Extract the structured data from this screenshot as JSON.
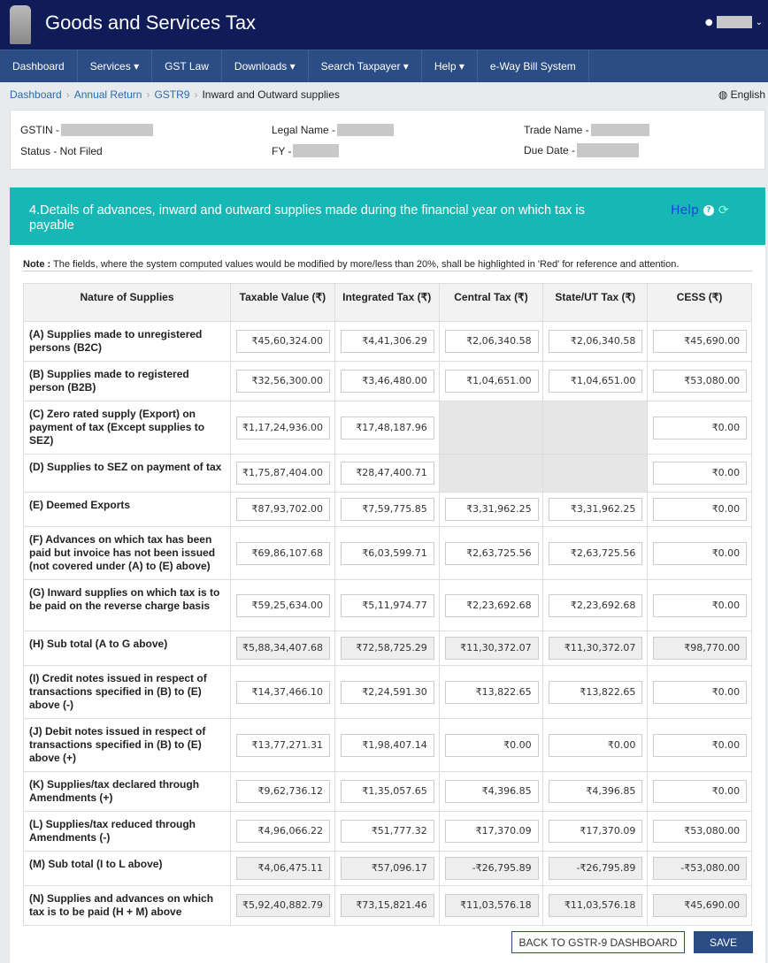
{
  "header": {
    "title": "Goods and Services Tax"
  },
  "nav": [
    "Dashboard",
    "Services ▾",
    "GST Law",
    "Downloads ▾",
    "Search Taxpayer ▾",
    "Help ▾",
    "e-Way Bill System"
  ],
  "breadcrumb": [
    "Dashboard",
    "Annual Return",
    "GSTR9",
    "Inward and Outward supplies"
  ],
  "language": "English",
  "info": {
    "gstin": "GSTIN -",
    "legal_name": "Legal Name -",
    "trade_name": "Trade Name -",
    "status": "Status - Not Filed",
    "fy": "FY -",
    "due_date": "Due Date -"
  },
  "banner": {
    "title": "4.Details of advances, inward and outward supplies made during the financial year on which tax is payable",
    "help": "Help"
  },
  "note": {
    "label": "Note :",
    "text": " The fields, where the system computed values would be modified by more/less than 20%, shall be highlighted in 'Red' for reference and attention."
  },
  "table": {
    "headers": [
      "Nature of Supplies",
      "Taxable Value (₹)",
      "Integrated Tax (₹)",
      "Central Tax (₹)",
      "State/UT Tax (₹)",
      "CESS (₹)"
    ],
    "rows": [
      {
        "label": "(A) Supplies made to unregistered persons (B2C)",
        "values": [
          "₹45,60,324.00",
          "₹4,41,306.29",
          "₹2,06,340.58",
          "₹2,06,340.58",
          "₹45,690.00"
        ]
      },
      {
        "label": "(B) Supplies made to registered person (B2B)",
        "values": [
          "₹32,56,300.00",
          "₹3,46,480.00",
          "₹1,04,651.00",
          "₹1,04,651.00",
          "₹53,080.00"
        ]
      },
      {
        "label": "(C) Zero rated supply (Export) on payment of tax (Except supplies to SEZ)",
        "values": [
          "₹1,17,24,936.00",
          "₹17,48,187.96",
          null,
          null,
          "₹0.00"
        ]
      },
      {
        "label": "(D) Supplies to SEZ on payment of tax",
        "values": [
          "₹1,75,87,404.00",
          "₹28,47,400.71",
          null,
          null,
          "₹0.00"
        ]
      },
      {
        "label": "(E) Deemed Exports",
        "values": [
          "₹87,93,702.00",
          "₹7,59,775.85",
          "₹3,31,962.25",
          "₹3,31,962.25",
          "₹0.00"
        ]
      },
      {
        "label": "(F) Advances on which tax has been paid but invoice has not been issued (not covered under (A) to (E) above)",
        "values": [
          "₹69,86,107.68",
          "₹6,03,599.71",
          "₹2,63,725.56",
          "₹2,63,725.56",
          "₹0.00"
        ]
      },
      {
        "label": "(G) Inward supplies on which tax is to be paid on the reverse charge basis",
        "values": [
          "₹59,25,634.00",
          "₹5,11,974.77",
          "₹2,23,692.68",
          "₹2,23,692.68",
          "₹0.00"
        ]
      },
      {
        "label": "(H) Sub total (A to G above)",
        "readonly": true,
        "values": [
          "₹5,88,34,407.68",
          "₹72,58,725.29",
          "₹11,30,372.07",
          "₹11,30,372.07",
          "₹98,770.00"
        ]
      },
      {
        "label": "(I) Credit notes issued in respect of transactions specified in (B) to (E) above (-)",
        "values": [
          "₹14,37,466.10",
          "₹2,24,591.30",
          "₹13,822.65",
          "₹13,822.65",
          "₹0.00"
        ]
      },
      {
        "label": "(J) Debit notes issued in respect of transactions specified in (B) to (E) above (+)",
        "values": [
          "₹13,77,271.31",
          "₹1,98,407.14",
          "₹0.00",
          "₹0.00",
          "₹0.00"
        ]
      },
      {
        "label": "(K) Supplies/tax declared through Amendments (+)",
        "values": [
          "₹9,62,736.12",
          "₹1,35,057.65",
          "₹4,396.85",
          "₹4,396.85",
          "₹0.00"
        ]
      },
      {
        "label": "(L) Supplies/tax reduced through Amendments (-)",
        "values": [
          "₹4,96,066.22",
          "₹51,777.32",
          "₹17,370.09",
          "₹17,370.09",
          "₹53,080.00"
        ]
      },
      {
        "label": "(M) Sub total (I to L above)",
        "readonly": true,
        "values": [
          "₹4,06,475.11",
          "₹57,096.17",
          "-₹26,795.89",
          "-₹26,795.89",
          "-₹53,080.00"
        ]
      },
      {
        "label": "(N) Supplies and advances on which tax is to be paid (H + M) above",
        "readonly": true,
        "values": [
          "₹5,92,40,882.79",
          "₹73,15,821.46",
          "₹11,03,576.18",
          "₹11,03,576.18",
          "₹45,690.00"
        ]
      }
    ]
  },
  "buttons": {
    "back": "BACK TO GSTR-9 DASHBOARD",
    "save": "SAVE"
  },
  "colors": {
    "header": "#0f1c58",
    "nav": "#2c4c86",
    "banner": "#17b7b6",
    "save": "#2c4c86"
  }
}
